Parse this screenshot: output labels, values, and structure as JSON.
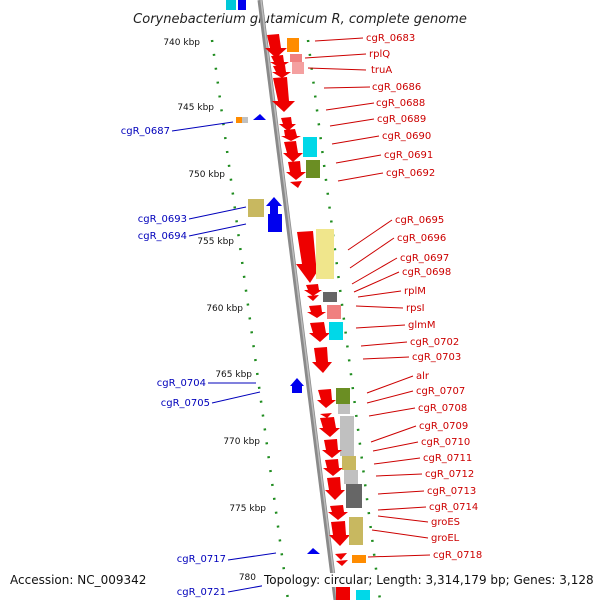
{
  "title": "Corynebacterium glutamicum R, complete genome",
  "footer": {
    "accession": "Accession: NC_009342",
    "topology": "Topology: circular; Length: 3,314,179 bp; Genes: 3,128"
  },
  "colors": {
    "axis": "#8a8a8a",
    "tick": "#1f8c1f",
    "forward_gene": "#ee0000",
    "reverse_gene": "#0000ee",
    "label_forward": "#cc0000",
    "label_reverse": "#0000bb"
  },
  "ticks": [
    "740 kbp",
    "745 kbp",
    "750 kbp",
    "755 kbp",
    "760 kbp",
    "765 kbp",
    "770 kbp",
    "775 kbp",
    "780"
  ],
  "reverse_labels": [
    "cgR_0687",
    "cgR_0693",
    "cgR_0694",
    "cgR_0704",
    "cgR_0705",
    "cgR_0717",
    "cgR_0721"
  ],
  "forward_labels": [
    "cgR_0683",
    "rplQ",
    "truA",
    "cgR_0686",
    "cgR_0688",
    "cgR_0689",
    "cgR_0690",
    "cgR_0691",
    "cgR_0692",
    "cgR_0695",
    "cgR_0696",
    "cgR_0697",
    "cgR_0698",
    "rplM",
    "rpsI",
    "glmM",
    "cgR_0702",
    "cgR_0703",
    "alr",
    "cgR_0707",
    "cgR_0708",
    "cgR_0709",
    "cgR_0710",
    "cgR_0711",
    "cgR_0712",
    "cgR_0713",
    "cgR_0714",
    "groES",
    "groEL",
    "cgR_0718"
  ]
}
